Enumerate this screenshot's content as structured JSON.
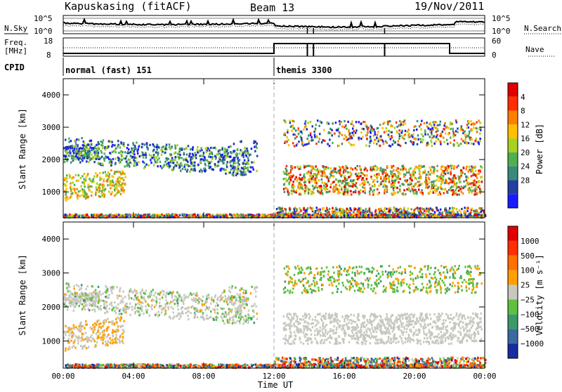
{
  "header": {
    "station": "Kapuskasing (fitACF)",
    "beam": "Beam 13",
    "date": "19/Nov/2011"
  },
  "noise_panel": {
    "left_label": "N.Sky",
    "right_label": "N.Search",
    "y_ticks_left": [
      "10^5",
      "10^0"
    ],
    "y_ticks_right": [
      "10^5",
      "10^0"
    ]
  },
  "freq_panel": {
    "left_label_1": "Freq.",
    "left_label_2": "[MHz]",
    "right_label": "Nave",
    "y_ticks_left": [
      "18",
      "8"
    ],
    "y_ticks_right": [
      "60",
      "0"
    ]
  },
  "cpid": {
    "label": "CPID",
    "segments": [
      {
        "start_hr": 0,
        "text": "normal (fast) 151"
      },
      {
        "start_hr": 12,
        "text": "themis 3300"
      }
    ]
  },
  "chart_data": [
    {
      "type": "heatmap",
      "name": "power",
      "ylabel": "Slant Range [km]",
      "xlabel": "",
      "x_range_hr": [
        0,
        24
      ],
      "ylim": [
        200,
        4500
      ],
      "y_ticks": [
        "1000",
        "2000",
        "3000",
        "4000"
      ],
      "colorbar": {
        "label": "Power [dB]",
        "ticks": [
          "4",
          "8",
          "12",
          "16",
          "20",
          "24",
          "28"
        ],
        "colors": [
          "#1a1aff",
          "#2040a0",
          "#3a8a7a",
          "#50b050",
          "#a8d020",
          "#ffc000",
          "#ff8000",
          "#ff3000",
          "#e00000"
        ]
      }
    },
    {
      "type": "heatmap",
      "name": "velocity",
      "ylabel": "Slant Range [km]",
      "xlabel": "Time UT",
      "x_range_hr": [
        0,
        24
      ],
      "ylim": [
        200,
        4500
      ],
      "y_ticks": [
        "1000",
        "2000",
        "3000",
        "4000"
      ],
      "x_ticks": [
        "00:00",
        "04:00",
        "08:00",
        "12:00",
        "16:00",
        "20:00",
        "00:00"
      ],
      "colorbar": {
        "label": "Velocity [m s⁻¹]",
        "ticks": [
          "1000",
          "500",
          "100",
          "25",
          "−25",
          "−100",
          "−500",
          "−1000"
        ],
        "colors": [
          "#1a2aa0",
          "#3a6aa0",
          "#3a9a6a",
          "#60c040",
          "#c8c8c0",
          "#ffa000",
          "#ff7000",
          "#ff3000",
          "#e00000"
        ]
      }
    }
  ]
}
